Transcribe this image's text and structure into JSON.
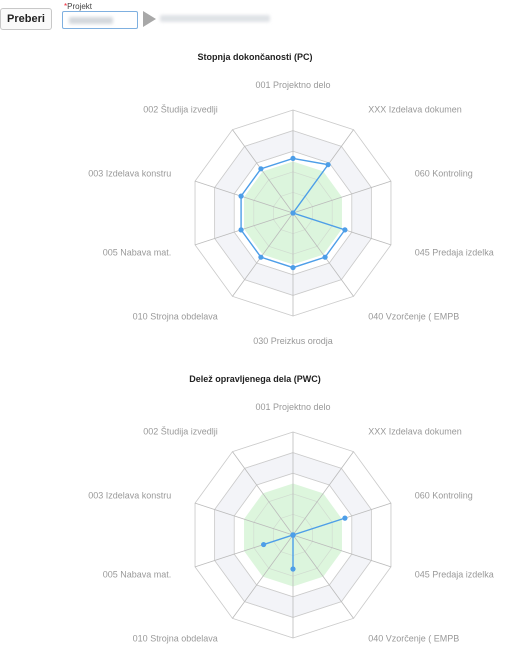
{
  "toolbar": {
    "button_label": "Preberi",
    "field_required_mark": "*",
    "field_label": "Projekt",
    "project_value": "",
    "project_description": ""
  },
  "axes": [
    "001 Projektno delo",
    "XXX Izdelava dokumen",
    "060 Kontroling",
    "045 Predaja izdelka",
    "040 Vzorčenje ( EMPB",
    "030 Preizkus orodja",
    "010 Strojna obdelava",
    "005 Nabava mat.",
    "003 Izdelava konstru",
    "002 Študija izvedlji"
  ],
  "colors": {
    "series": "#4d9ee8",
    "target_fill": "#d9f5d9",
    "band_fill": "#f3f4f8",
    "grid": "#cccccc",
    "spoke": "#bbbbbb"
  },
  "chart_data": [
    {
      "type": "radar",
      "title": "Stopnja dokončanosti (PC)",
      "rmax": 1.0,
      "target_level": 0.5,
      "categories": [
        "001 Projektno delo",
        "XXX Izdelava dokumen",
        "060 Kontroling",
        "045 Predaja izdelka",
        "040 Vzorčenje ( EMPB",
        "030 Preizkus orodja",
        "010 Strojna obdelava",
        "005 Nabava mat.",
        "003 Izdelava konstru",
        "002 Študija izvedlji"
      ],
      "series": [
        {
          "values": [
            0.53,
            0.58,
            0.0,
            0.53,
            0.53,
            0.53,
            0.53,
            0.53,
            0.53,
            0.53
          ]
        }
      ]
    },
    {
      "type": "radar",
      "title": "Delež opravljenega dela (PWC)",
      "rmax": 1.0,
      "target_level": 0.5,
      "categories": [
        "001 Projektno delo",
        "XXX Izdelava dokumen",
        "060 Kontroling",
        "045 Predaja izdelka",
        "040 Vzorčenje ( EMPB",
        "030 Preizkus orodja",
        "010 Strojna obdelava",
        "005 Nabava mat.",
        "003 Izdelava konstru",
        "002 Študija izvedlji"
      ],
      "series": [
        {
          "values": [
            0.0,
            0.0,
            0.53,
            0.0,
            0.0,
            0.33,
            0.0,
            0.3,
            0.0,
            0.0
          ]
        }
      ]
    }
  ]
}
